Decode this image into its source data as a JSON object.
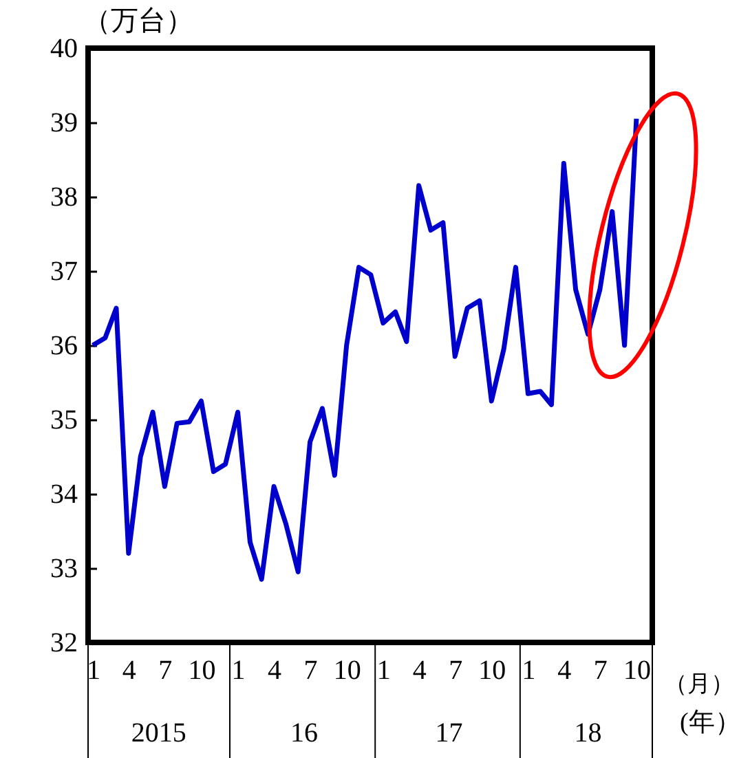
{
  "chart_data": {
    "type": "line",
    "ylabel": "（万台）",
    "xlabel": "（月）",
    "x2label": "(年）",
    "x": [
      "2015-01",
      "2015-02",
      "2015-03",
      "2015-04",
      "2015-05",
      "2015-06",
      "2015-07",
      "2015-08",
      "2015-09",
      "2015-10",
      "2015-11",
      "2015-12",
      "2016-01",
      "2016-02",
      "2016-03",
      "2016-04",
      "2016-05",
      "2016-06",
      "2016-07",
      "2016-08",
      "2016-09",
      "2016-10",
      "2016-11",
      "2016-12",
      "2017-01",
      "2017-02",
      "2017-03",
      "2017-04",
      "2017-05",
      "2017-06",
      "2017-07",
      "2017-08",
      "2017-09",
      "2017-10",
      "2017-11",
      "2017-12",
      "2018-01",
      "2018-02",
      "2018-03",
      "2018-04",
      "2018-05",
      "2018-06",
      "2018-07",
      "2018-08",
      "2018-09",
      "2018-10"
    ],
    "series": [
      {
        "color": "#0000cc",
        "values": [
          36.0,
          36.1,
          36.5,
          33.2,
          34.5,
          35.1,
          34.1,
          34.95,
          34.97,
          35.25,
          34.3,
          34.4,
          35.1,
          33.35,
          32.85,
          34.1,
          33.6,
          32.95,
          34.7,
          35.15,
          34.25,
          36.0,
          37.05,
          36.95,
          36.3,
          36.45,
          36.05,
          38.15,
          37.55,
          37.65,
          35.85,
          36.5,
          36.6,
          35.25,
          35.95,
          37.05,
          35.35,
          35.38,
          35.2,
          38.45,
          36.75,
          36.15,
          36.75,
          37.8,
          36.0,
          39.05
        ]
      }
    ],
    "xlim": [
      "2014-12-20",
      "2018-11-10"
    ],
    "x2lim": [
      "2014-12-20",
      "2018-11-10"
    ],
    "xticks": [
      {
        "value": "2015-01",
        "label": "1"
      },
      {
        "value": "2015-04",
        "label": "4"
      },
      {
        "value": "2015-07",
        "label": "7"
      },
      {
        "value": "2015-10",
        "label": "10"
      },
      {
        "value": "2016-01",
        "label": "1"
      },
      {
        "value": "2016-04",
        "label": "4"
      },
      {
        "value": "2016-07",
        "label": "7"
      },
      {
        "value": "2016-10",
        "label": "10"
      },
      {
        "value": "2017-01",
        "label": "1"
      },
      {
        "value": "2017-04",
        "label": "4"
      },
      {
        "value": "2017-07",
        "label": "7"
      },
      {
        "value": "2017-10",
        "label": "10"
      },
      {
        "value": "2018-01",
        "label": "1"
      },
      {
        "value": "2018-04",
        "label": "4"
      },
      {
        "value": "2018-07",
        "label": "7"
      },
      {
        "value": "2018-10",
        "label": "10"
      }
    ],
    "x2ticks": [
      {
        "value": "2015-06-16",
        "label": "2015"
      },
      {
        "value": "2016-06-16",
        "label": "16"
      },
      {
        "value": "2017-06-16",
        "label": "17"
      },
      {
        "value": "2018-06-01",
        "label": "18"
      }
    ],
    "ylim": [
      32,
      40
    ],
    "yticks": [
      32,
      33,
      34,
      35,
      36,
      37,
      38,
      39,
      40
    ],
    "grid": false,
    "marker": "none",
    "line_style": "solid"
  }
}
